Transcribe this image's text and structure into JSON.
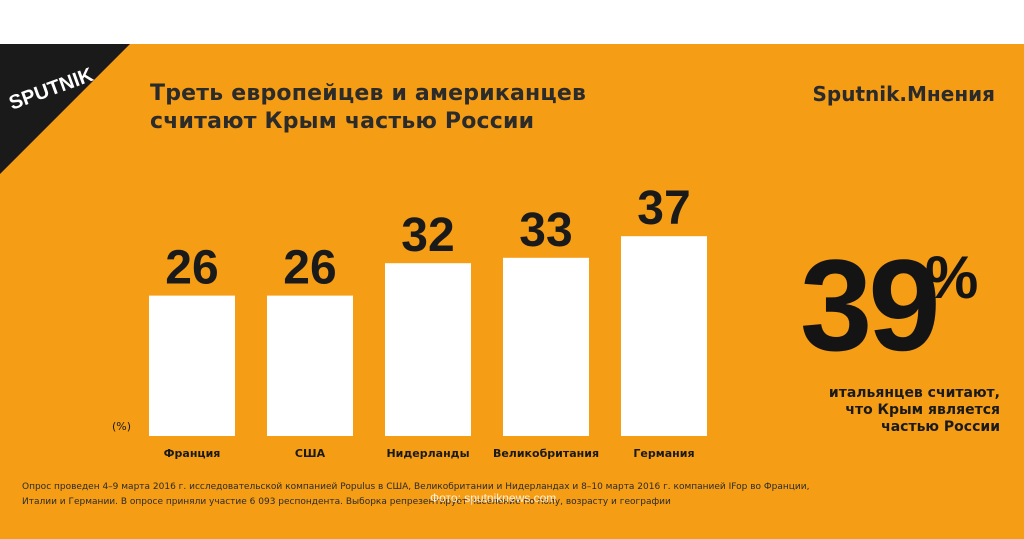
{
  "brand": {
    "logo_text": "SPUTNIK",
    "right_label": "Sputnik.Мнения"
  },
  "title": {
    "line1": "Треть европейцев и американцев",
    "line2": "считают Крым частью России"
  },
  "chart_data": {
    "type": "bar",
    "categories": [
      "Франция",
      "США",
      "Нидерланды",
      "Великобритания",
      "Германия"
    ],
    "values": [
      26,
      26,
      32,
      33,
      37
    ],
    "unit_label": "(%)",
    "bar_color": "#ffffff",
    "title": "Треть европейцев и американцев считают Крым частью России",
    "xlabel": "",
    "ylabel": "(%)",
    "ylim": [
      0,
      40
    ],
    "grid": false,
    "legend": "none"
  },
  "highlight": {
    "value": "39",
    "unit": "%",
    "line1": "итальянцев считают,",
    "line2": "что Крым является",
    "line3": "частью России"
  },
  "footnote": {
    "line1": "Опрос проведен 4–9 марта 2016 г. исследовательской компанией Populus в США, Великобритании и Нидерландах и 8–10 марта 2016 г. компанией IFop во Франции,",
    "line2": "Италии и Германии. В опросе приняли участие 6 093 респондента. Выборка репрезентирует население по полу, возрасту и географии"
  },
  "watermark": "Фото: sputniknews.com",
  "colors": {
    "background": "#F59D14",
    "text": "#1a1a1a",
    "logo": "#1a1a1a",
    "bars": "#ffffff"
  }
}
